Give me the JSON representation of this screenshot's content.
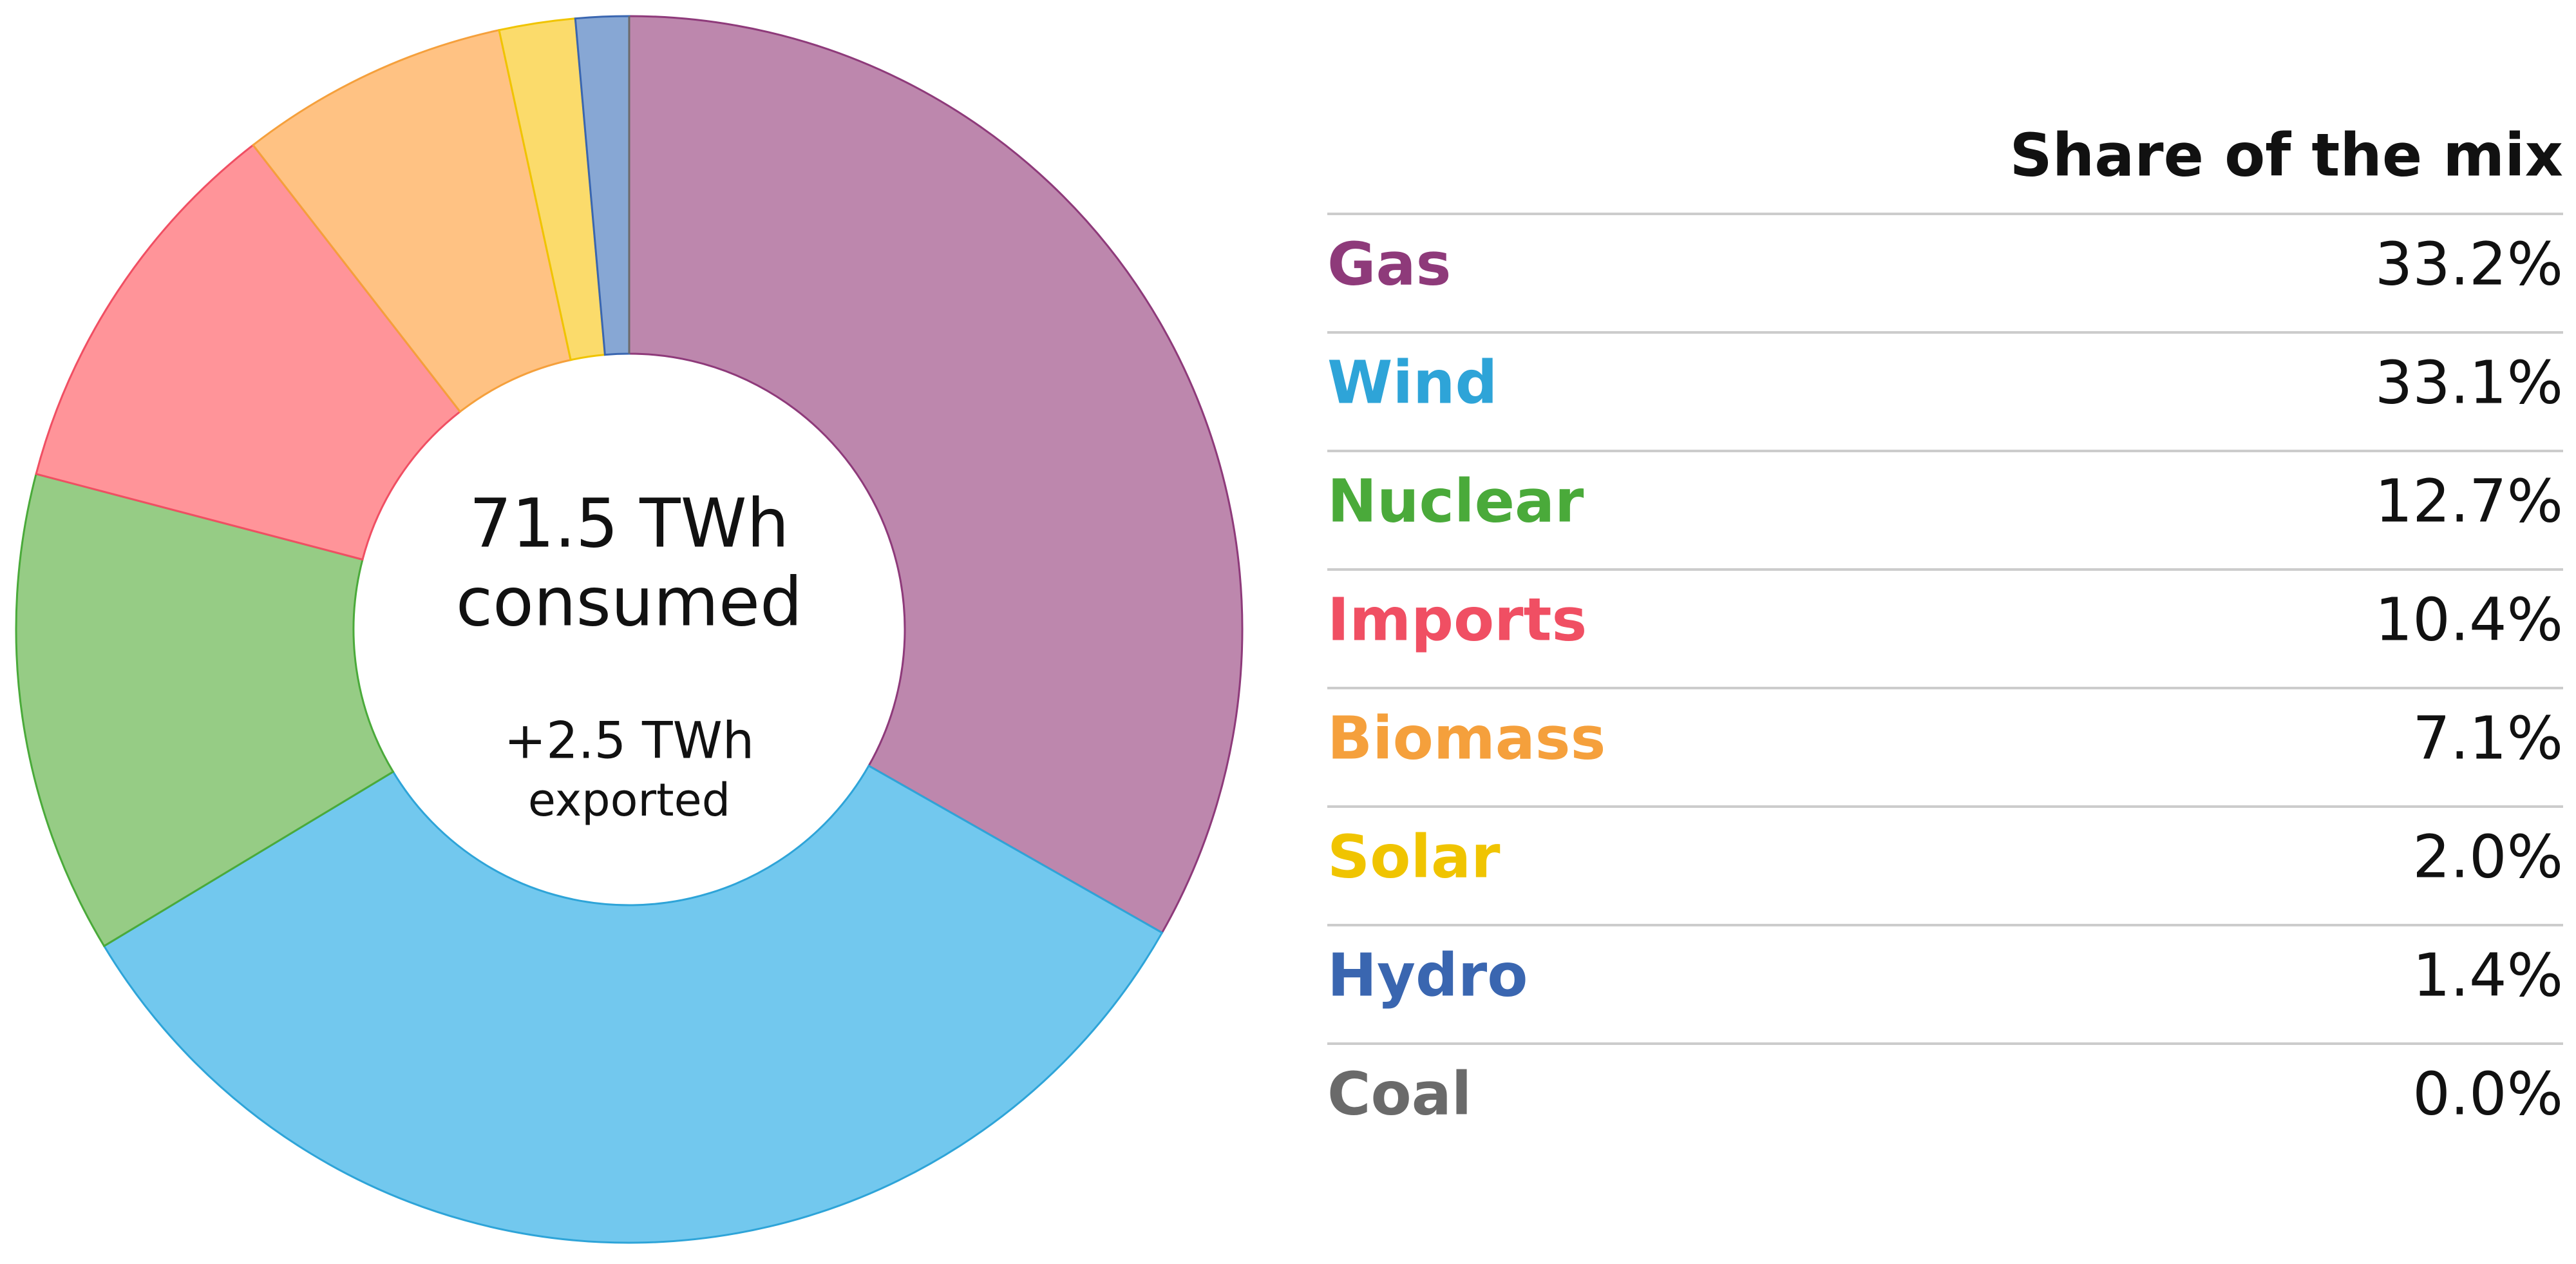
{
  "chart_data": {
    "type": "donut",
    "center_text": [
      "71.5 TWh",
      "consumed"
    ],
    "center_subtext": [
      "+2.5 TWh",
      "exported"
    ],
    "table_header": "Share of the mix",
    "categories": [
      "Gas",
      "Wind",
      "Nuclear",
      "Imports",
      "Biomass",
      "Solar",
      "Hydro",
      "Coal"
    ],
    "values": [
      33.2,
      33.1,
      12.7,
      10.4,
      7.1,
      2.0,
      1.4,
      0.0
    ],
    "value_labels": [
      "33.2%",
      "33.1%",
      "12.7%",
      "10.4%",
      "7.1%",
      "2.0%",
      "1.4%",
      "0.0%"
    ],
    "colors": [
      "#bd87ad",
      "#72c8ee",
      "#96cc85",
      "#ff9499",
      "#ffc283",
      "#fbdb6b",
      "#87a7d4",
      "#9a9a9a"
    ],
    "text_colors": [
      "#8e3a7a",
      "#2ea4d8",
      "#4aaa3a",
      "#f04f63",
      "#f5a03c",
      "#f0c400",
      "#3a66b0",
      "#6a6a6a"
    ]
  }
}
